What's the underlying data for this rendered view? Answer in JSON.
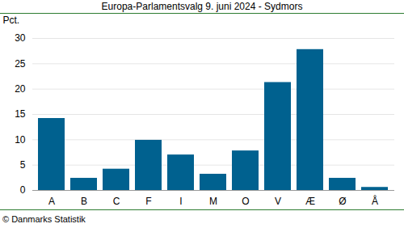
{
  "chart_data": {
    "type": "bar",
    "title": "Europa-Parlamentsvalg 9. juni 2024 - Sydmors",
    "y_label": "Pct.",
    "caption": "© Danmarks Statistik",
    "categories": [
      "A",
      "B",
      "C",
      "F",
      "I",
      "M",
      "O",
      "V",
      "Æ",
      "Ø",
      "Å"
    ],
    "values": [
      14.2,
      2.4,
      4.2,
      9.9,
      7.0,
      3.2,
      7.8,
      21.3,
      27.8,
      2.4,
      0.6
    ],
    "color": "#00618f",
    "ylim": [
      0,
      30
    ],
    "yticks": [
      0,
      5,
      10,
      15,
      20,
      25,
      30
    ],
    "grid": true
  }
}
